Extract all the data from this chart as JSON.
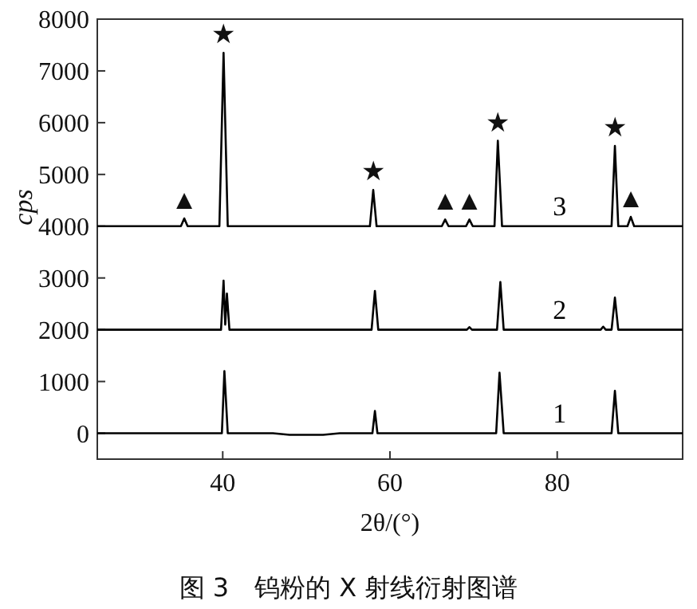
{
  "chart_data": {
    "type": "line",
    "title": "图 3　钨粉的 X 射线衍射图谱",
    "xlabel": "2θ/(°)",
    "ylabel": "cps",
    "xlim": [
      25,
      95
    ],
    "ylim": [
      -500,
      8000
    ],
    "xticks": [
      40,
      60,
      80
    ],
    "yticks": [
      0,
      1000,
      2000,
      3000,
      4000,
      5000,
      6000,
      7000,
      8000
    ],
    "series": [
      {
        "name": "3",
        "color": "#000000",
        "x": [
          25,
          35.0,
          35.4,
          35.8,
          39.6,
          40.1,
          40.6,
          57.6,
          58.0,
          58.4,
          66.2,
          66.6,
          67.0,
          69.1,
          69.5,
          69.9,
          72.5,
          72.9,
          73.4,
          86.5,
          86.9,
          87.3,
          88.4,
          88.8,
          89.2,
          95
        ],
        "values": [
          4000,
          4000,
          4150,
          4000,
          4000,
          7350,
          4000,
          4000,
          4700,
          4000,
          4000,
          4130,
          4000,
          4000,
          4130,
          4000,
          4000,
          5650,
          4000,
          4000,
          5550,
          4000,
          4000,
          4180,
          4000,
          4000
        ]
      },
      {
        "name": "2",
        "color": "#000000",
        "x": [
          25,
          39.8,
          40.1,
          40.3,
          40.5,
          40.8,
          57.8,
          58.2,
          58.6,
          69.2,
          69.5,
          69.8,
          72.8,
          73.2,
          73.6,
          85.2,
          85.5,
          85.8,
          86.5,
          86.9,
          87.3,
          95
        ],
        "values": [
          2000,
          2000,
          2950,
          2100,
          2700,
          2000,
          2000,
          2750,
          2000,
          2000,
          2050,
          2000,
          2000,
          2920,
          2000,
          2000,
          2060,
          2000,
          2000,
          2620,
          2000,
          2000
        ]
      },
      {
        "name": "1",
        "color": "#000000",
        "x": [
          25,
          39.9,
          40.2,
          40.6,
          46,
          48,
          52,
          54,
          57.9,
          58.2,
          58.5,
          72.7,
          73.1,
          73.6,
          86.5,
          86.9,
          87.3,
          95
        ],
        "values": [
          0,
          0,
          1200,
          0,
          0,
          -30,
          -30,
          0,
          0,
          430,
          0,
          0,
          1170,
          0,
          0,
          820,
          0,
          0
        ]
      }
    ],
    "annotations": [
      {
        "text": "★",
        "x": 40.1,
        "y": 7350
      },
      {
        "text": "★",
        "x": 58.0,
        "y": 4700
      },
      {
        "text": "★",
        "x": 72.9,
        "y": 5650
      },
      {
        "text": "★",
        "x": 86.9,
        "y": 5550
      },
      {
        "text": "▲",
        "x": 35.4,
        "y": 4150
      },
      {
        "text": "▲",
        "x": 66.6,
        "y": 4130
      },
      {
        "text": "▲",
        "x": 69.5,
        "y": 4130
      },
      {
        "text": "▲",
        "x": 88.8,
        "y": 4180
      }
    ]
  }
}
